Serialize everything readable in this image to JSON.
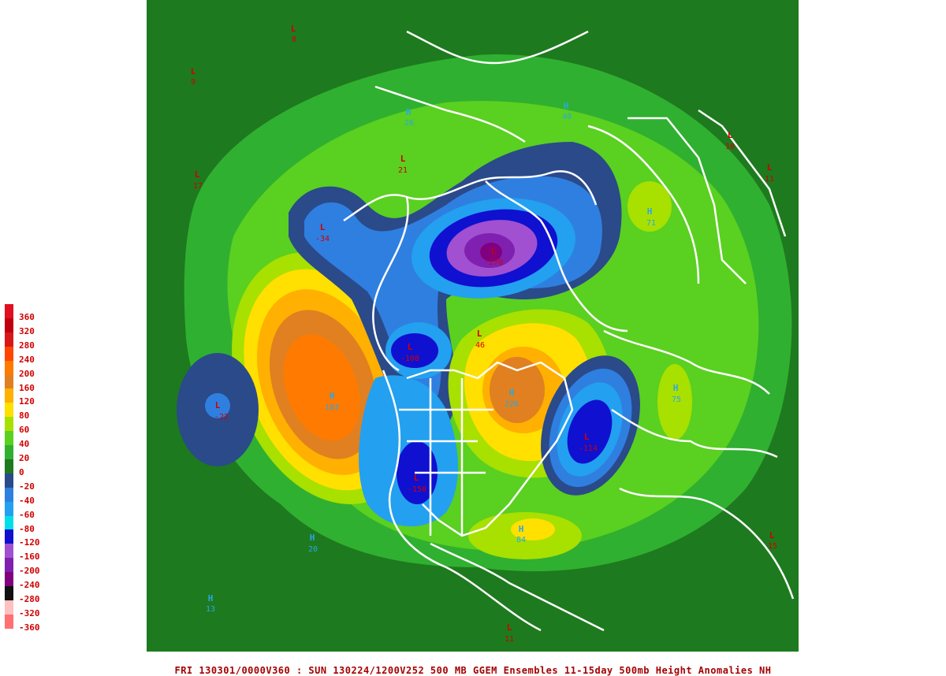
{
  "caption": "FRI 130301/0000V360 : SUN 130224/1200V252  500 MB GGEM Ensembles 11-15day 500mb Height Anomalies NH",
  "colors": {
    "background": "#1e7a1e",
    "coast": "#ffffff",
    "high_label": "#2aa7e6",
    "low_label": "#d00000"
  },
  "legend": {
    "labels": [
      "360",
      "320",
      "280",
      "240",
      "200",
      "160",
      "120",
      "80",
      "60",
      "40",
      "20",
      "0",
      "-20",
      "-40",
      "-60",
      "-80",
      "-120",
      "-160",
      "-200",
      "-240",
      "-280",
      "-320",
      "-360"
    ],
    "colors": [
      "#e01020",
      "#c00010",
      "#d81818",
      "#ff4500",
      "#ff7a00",
      "#e08020",
      "#ffb000",
      "#ffe000",
      "#a8e000",
      "#5ad020",
      "#30b030",
      "#1e7a1e",
      "#2a4a8a",
      "#2f7fe0",
      "#23a0f0",
      "#00dfe8",
      "#1010d0",
      "#a050d0",
      "#8020b0",
      "#800080",
      "#101010",
      "#ffc0c0",
      "#ff7070"
    ]
  },
  "centers": [
    {
      "type": "L",
      "value": "-34"
    },
    {
      "type": "L",
      "value": "-108"
    },
    {
      "type": "L",
      "value": "-22"
    },
    {
      "type": "H",
      "value": "183"
    },
    {
      "type": "L",
      "value": "-150"
    },
    {
      "type": "H",
      "value": "226"
    },
    {
      "type": "L",
      "value": "-114"
    },
    {
      "type": "H",
      "value": "84"
    },
    {
      "type": "H",
      "value": "75"
    },
    {
      "type": "H",
      "value": "71"
    },
    {
      "type": "L",
      "value": "-270"
    },
    {
      "type": "L",
      "value": "46"
    },
    {
      "type": "L",
      "value": "21"
    },
    {
      "type": "H",
      "value": "20"
    },
    {
      "type": "H",
      "value": "13"
    },
    {
      "type": "L",
      "value": "15"
    },
    {
      "type": "L",
      "value": "11"
    },
    {
      "type": "L",
      "value": "17"
    },
    {
      "type": "L",
      "value": "9"
    },
    {
      "type": "L",
      "value": "8"
    },
    {
      "type": "H",
      "value": "26"
    },
    {
      "type": "H",
      "value": "40"
    },
    {
      "type": "L",
      "value": "10"
    },
    {
      "type": "L",
      "value": "11"
    }
  ]
}
